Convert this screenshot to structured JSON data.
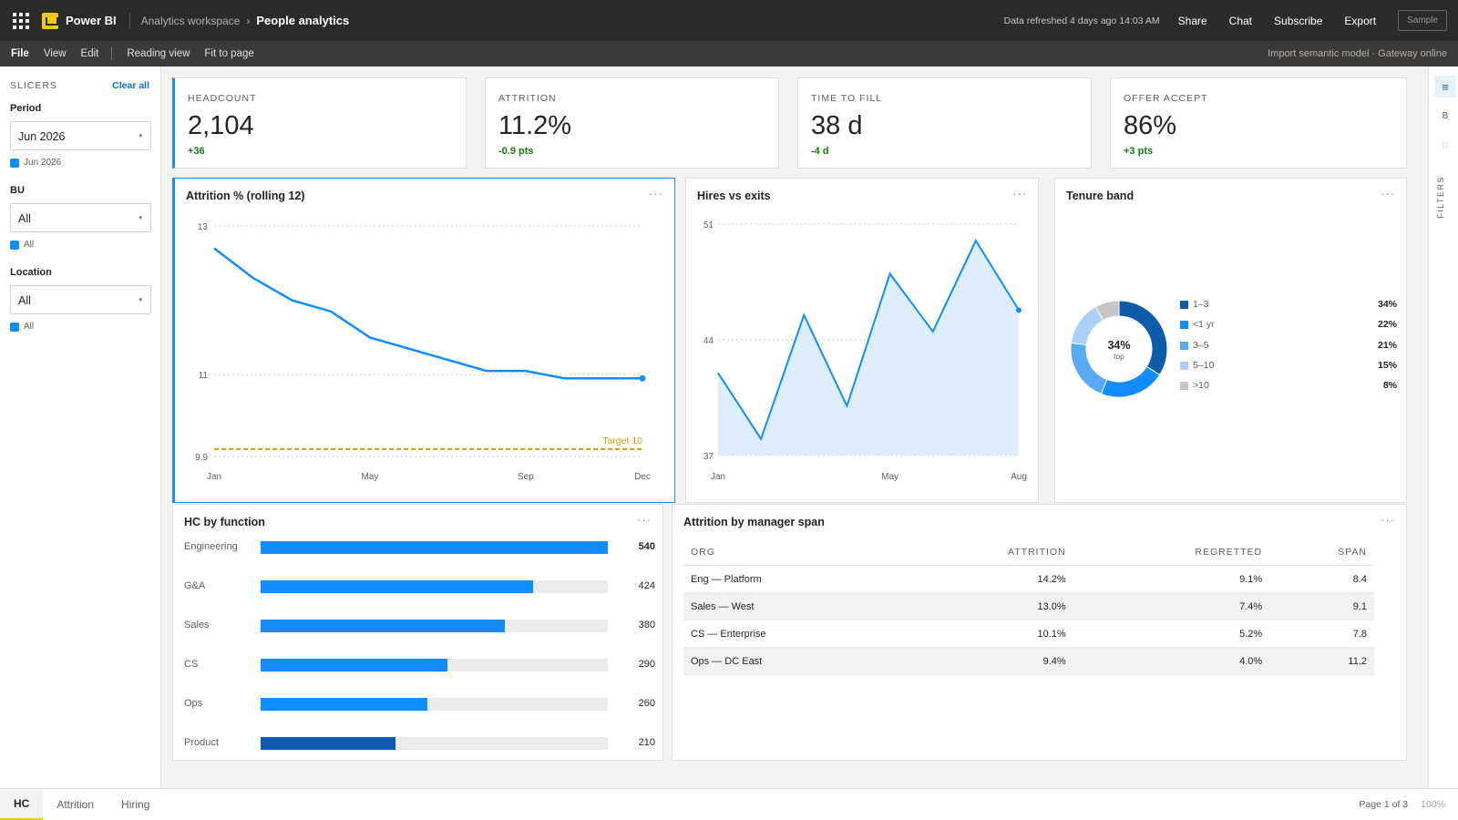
{
  "app": {
    "name": "Power BI"
  },
  "breadcrumb": {
    "workspace": "Analytics workspace",
    "separator": "›",
    "report": "People analytics"
  },
  "topbar": {
    "refresh_text": "Data refreshed 4 days ago 14:03 AM",
    "actions": [
      "Share",
      "Chat",
      "Subscribe",
      "Export"
    ],
    "sample_label": "Sample"
  },
  "menubar": {
    "items": [
      "File",
      "View",
      "Edit"
    ],
    "view_items": [
      "Reading view",
      "Fit to page"
    ],
    "status": "Import semantic model · Gateway online"
  },
  "slicers": {
    "header": "SLICERS",
    "clear_label": "Clear all",
    "items": [
      {
        "label": "Period",
        "value": "Jun 2026",
        "selected": "Jun 2026"
      },
      {
        "label": "BU",
        "value": "All",
        "selected": "All"
      },
      {
        "label": "Location",
        "value": "All",
        "selected": "All"
      }
    ]
  },
  "kpis": [
    {
      "label": "HEADCOUNT",
      "value": "2,104",
      "delta": "+36"
    },
    {
      "label": "ATTRITION",
      "value": "11.2%",
      "delta": "-0.9 pts"
    },
    {
      "label": "TIME TO FILL",
      "value": "38 d",
      "delta": "-4 d"
    },
    {
      "label": "OFFER ACCEPT",
      "value": "86%",
      "delta": "+3 pts"
    }
  ],
  "visuals": {
    "attrition": {
      "title": "Attrition % (rolling 12)",
      "target_label": "Target 10"
    },
    "hires": {
      "title": "Hires vs exits"
    },
    "tenure": {
      "title": "Tenure band",
      "center_value": "34%",
      "center_label": "top"
    },
    "hc_function": {
      "title": "HC by function"
    },
    "manager_span": {
      "title": "Attrition by manager span"
    },
    "more_label": "···"
  },
  "chart_data": [
    {
      "type": "line",
      "title": "Attrition % (rolling 12)",
      "x_ticks": [
        "Jan",
        "May",
        "Sep",
        "Dec"
      ],
      "y_ticks": [
        "13",
        "11",
        "9.9"
      ],
      "ylim": [
        9.9,
        13
      ],
      "series": [
        {
          "values": [
            12.7,
            12.3,
            12.0,
            11.85,
            11.5,
            11.35,
            11.2,
            11.05,
            11.05,
            10.95,
            10.95,
            10.95
          ]
        }
      ],
      "target": 10,
      "grid": true,
      "color": "#118dff",
      "target_color": "#c9a000"
    },
    {
      "type": "area",
      "title": "Hires vs exits",
      "x_ticks": [
        "Jan",
        "May",
        "Aug"
      ],
      "y_ticks": [
        "51",
        "44",
        "37"
      ],
      "ylim": [
        37,
        51
      ],
      "series": [
        {
          "values": [
            42,
            38,
            45.5,
            40,
            48,
            44.5,
            50,
            45.8
          ]
        }
      ],
      "grid": true,
      "color": "#118dff"
    },
    {
      "type": "pie",
      "title": "Tenure band",
      "categories": [
        "1–3",
        "<1 yr",
        "3–5",
        "5–10",
        ">10"
      ],
      "values": [
        34,
        22,
        21,
        15,
        8
      ],
      "value_labels": [
        "34%",
        "22%",
        "21%",
        "15%",
        "8%"
      ],
      "colors": [
        "#0d5baa",
        "#118dff",
        "#5aa9f5",
        "#a9d1f7",
        "#c8c6c4"
      ]
    },
    {
      "type": "bar",
      "title": "HC by function",
      "categories": [
        "Engineering",
        "G&A",
        "Sales",
        "CS",
        "Ops",
        "Product"
      ],
      "values": [
        540,
        424,
        380,
        290,
        260,
        210
      ],
      "max": 540,
      "color": "#118dff",
      "highlight_color": "#0d5baa"
    },
    {
      "type": "table",
      "title": "Attrition by manager span",
      "columns": [
        "ORG",
        "ATTRITION",
        "REGRETTED",
        "SPAN"
      ],
      "rows": [
        [
          "Eng — Platform",
          "14.2%",
          "9.1%",
          "8.4"
        ],
        [
          "Sales — West",
          "13.0%",
          "7.4%",
          "9.1"
        ],
        [
          "CS — Enterprise",
          "10.1%",
          "5.2%",
          "7.8"
        ],
        [
          "Ops — DC East",
          "9.4%",
          "4.0%",
          "11.2"
        ]
      ]
    }
  ],
  "right_pane": {
    "label": "FILTERS",
    "buttons": [
      "≡",
      "B",
      "□"
    ]
  },
  "pages": {
    "tabs": [
      "HC",
      "Attrition",
      "Hiring"
    ],
    "active": "HC",
    "page_info": "Page 1 of 3",
    "zoom": "100%"
  }
}
